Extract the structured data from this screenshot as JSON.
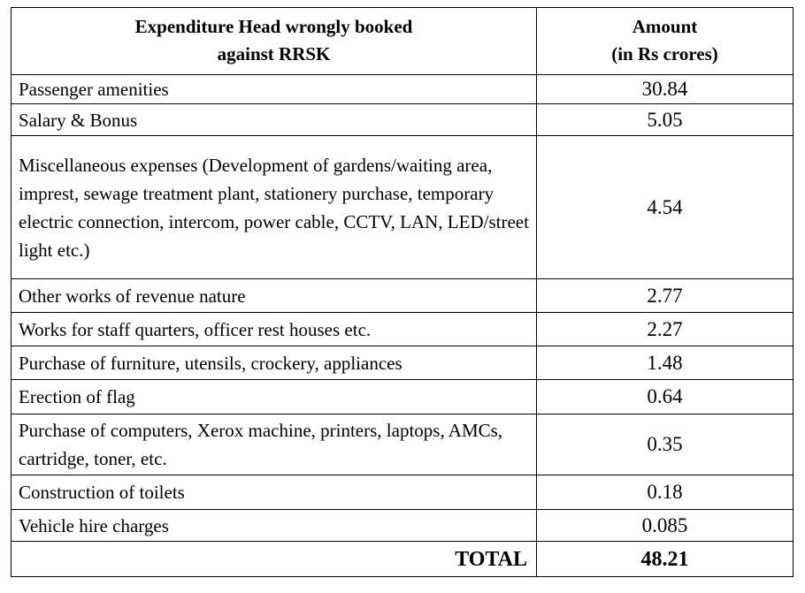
{
  "table": {
    "header": [
      {
        "lines": [
          "Expenditure Head wrongly booked",
          "against RRSK"
        ]
      },
      {
        "lines": [
          "Amount",
          "(in Rs crores)"
        ]
      }
    ],
    "rows": [
      [
        "Passenger amenities",
        30.84
      ],
      [
        "Salary & Bonus",
        5.05
      ],
      [
        "Miscellaneous expenses (Development of gardens/waiting area, imprest, sewage treatment plant, stationery purchase, temporary electric connection, intercom, power cable, CCTV, LAN, LED/street light etc.)",
        4.54
      ],
      [
        "Other works of revenue nature",
        2.77
      ],
      [
        "Works for staff quarters, officer rest houses etc.",
        2.27
      ],
      [
        "Purchase of furniture, utensils, crockery,  appliances",
        1.48
      ],
      [
        "Erection of flag",
        0.64
      ],
      [
        "Purchase of computers,  Xerox machine, printers, laptops, AMCs, cartridge, toner, etc.",
        0.35
      ],
      [
        "Construction of toilets",
        0.18
      ],
      [
        "Vehicle hire charges",
        0.085
      ]
    ],
    "total": [
      "TOTAL",
      48.21
    ]
  }
}
